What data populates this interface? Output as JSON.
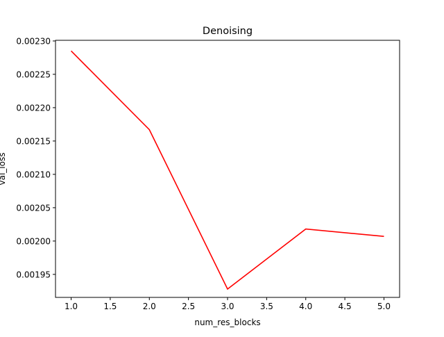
{
  "chart_data": {
    "type": "line",
    "title": "Denoising",
    "xlabel": "num_res_blocks",
    "ylabel": "val_loss",
    "x": [
      1.0,
      2.0,
      3.0,
      4.0,
      5.0
    ],
    "series": [
      {
        "color": "#ff0000",
        "values": [
          0.002285,
          0.002167,
          0.001928,
          0.002018,
          0.002007
        ]
      }
    ],
    "xlim": [
      0.8,
      5.2
    ],
    "ylim": [
      0.0019155,
      0.002301
    ],
    "xticks": [
      1.0,
      1.5,
      2.0,
      2.5,
      3.0,
      3.5,
      4.0,
      4.5,
      5.0
    ],
    "xtick_labels": [
      "1.0",
      "1.5",
      "2.0",
      "2.5",
      "3.0",
      "3.5",
      "4.0",
      "4.5",
      "5.0"
    ],
    "yticks": [
      0.00195,
      0.002,
      0.00205,
      0.0021,
      0.00215,
      0.0022,
      0.00225,
      0.0023
    ],
    "ytick_labels": [
      "0.00195",
      "0.00200",
      "0.00205",
      "0.00210",
      "0.00215",
      "0.00220",
      "0.00225",
      "0.00230"
    ],
    "grid": false,
    "legend": "none"
  }
}
